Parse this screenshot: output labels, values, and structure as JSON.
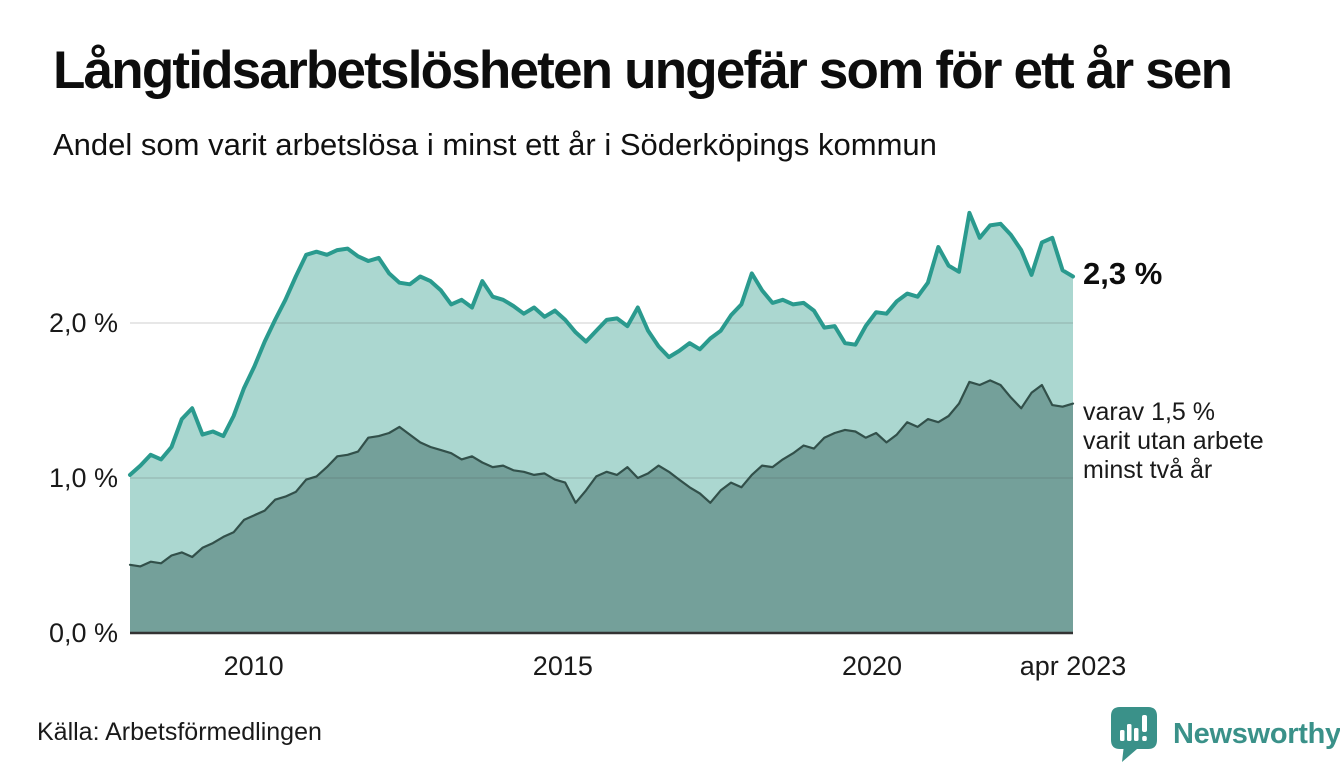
{
  "header": {
    "title": "Långtidsarbetslösheten ungefär som för ett år sen",
    "subtitle": "Andel som varit arbetslösa i minst ett år i Söderköpings kommun"
  },
  "chart_data": {
    "type": "area",
    "title": "Långtidsarbetslösheten ungefär som för ett år sen",
    "subtitle": "Andel som varit arbetslösa i minst ett år i Söderköpings kommun",
    "x_unit": "decimal_year",
    "x_start": 2008.0,
    "x_end": 2023.25,
    "ylim": [
      0,
      2.8
    ],
    "grid": "horizontal",
    "legend_position": "none",
    "yticks": [
      {
        "label": "0,0 %",
        "value": 0
      },
      {
        "label": "1,0 %",
        "value": 1
      },
      {
        "label": "2,0 %",
        "value": 2
      }
    ],
    "xticks": [
      {
        "label": "2010",
        "year": 2010
      },
      {
        "label": "2015",
        "year": 2015
      },
      {
        "label": "2020",
        "year": 2020
      },
      {
        "label": "apr 2023",
        "year": 2023.25
      }
    ],
    "series": [
      {
        "name": "Andel arbetslösa minst ett år",
        "latest_label": "2,3 %",
        "line_color": "#2a9a8e",
        "fill_color": "#abd7d0",
        "line_width": 4,
        "values": [
          1.02,
          1.08,
          1.15,
          1.12,
          1.2,
          1.38,
          1.45,
          1.28,
          1.3,
          1.27,
          1.4,
          1.58,
          1.72,
          1.88,
          2.02,
          2.15,
          2.3,
          2.44,
          2.46,
          2.44,
          2.47,
          2.48,
          2.43,
          2.4,
          2.42,
          2.32,
          2.26,
          2.25,
          2.3,
          2.27,
          2.21,
          2.12,
          2.15,
          2.1,
          2.27,
          2.17,
          2.15,
          2.11,
          2.06,
          2.1,
          2.04,
          2.08,
          2.02,
          1.94,
          1.88,
          1.95,
          2.02,
          2.03,
          1.98,
          2.1,
          1.95,
          1.85,
          1.78,
          1.82,
          1.87,
          1.83,
          1.9,
          1.95,
          2.05,
          2.12,
          2.32,
          2.21,
          2.13,
          2.15,
          2.12,
          2.13,
          2.08,
          1.97,
          1.98,
          1.87,
          1.86,
          1.98,
          2.07,
          2.06,
          2.14,
          2.19,
          2.17,
          2.26,
          2.49,
          2.37,
          2.33,
          2.71,
          2.55,
          2.63,
          2.64,
          2.57,
          2.47,
          2.31,
          2.52,
          2.55,
          2.34,
          2.3
        ]
      },
      {
        "name": "Varav utan arbete minst två år",
        "latest_label": "varav 1,5 %",
        "line_color": "#32504a",
        "fill_color": "#74a09a",
        "line_width": 2.2,
        "values": [
          0.44,
          0.43,
          0.46,
          0.45,
          0.5,
          0.52,
          0.49,
          0.55,
          0.58,
          0.62,
          0.65,
          0.73,
          0.76,
          0.79,
          0.86,
          0.88,
          0.91,
          0.99,
          1.01,
          1.07,
          1.14,
          1.15,
          1.17,
          1.26,
          1.27,
          1.29,
          1.33,
          1.28,
          1.23,
          1.2,
          1.18,
          1.16,
          1.12,
          1.14,
          1.1,
          1.07,
          1.08,
          1.05,
          1.04,
          1.02,
          1.03,
          0.99,
          0.97,
          0.84,
          0.92,
          1.01,
          1.04,
          1.02,
          1.07,
          1.0,
          1.03,
          1.08,
          1.04,
          0.99,
          0.94,
          0.9,
          0.84,
          0.92,
          0.97,
          0.94,
          1.02,
          1.08,
          1.07,
          1.12,
          1.16,
          1.21,
          1.19,
          1.26,
          1.29,
          1.31,
          1.3,
          1.26,
          1.29,
          1.23,
          1.28,
          1.36,
          1.33,
          1.38,
          1.36,
          1.4,
          1.48,
          1.62,
          1.6,
          1.63,
          1.6,
          1.52,
          1.45,
          1.55,
          1.6,
          1.47,
          1.46,
          1.48
        ]
      }
    ],
    "annotations": {
      "latest_total": {
        "text": "2,3 %"
      },
      "latest_two_year": {
        "lines": [
          "varav 1,5 %",
          "varit utan arbete",
          "minst två år"
        ]
      }
    },
    "axis_color": "#333333",
    "gridline_color": "rgba(80,80,80,0.22)"
  },
  "footer": {
    "source": "Källa: Arbetsförmedlingen",
    "logo": {
      "text": "Newsworthy",
      "color": "#3a9189",
      "icon": "newsworthy-speech-bubble-chart-icon"
    }
  }
}
